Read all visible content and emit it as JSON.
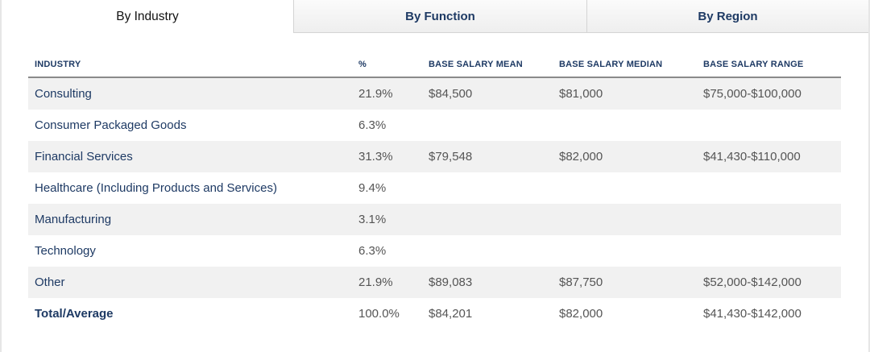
{
  "tabs": [
    {
      "label": "By Industry",
      "active": true
    },
    {
      "label": "By Function",
      "active": false
    },
    {
      "label": "By Region",
      "active": false
    }
  ],
  "table": {
    "headers": [
      "INDUSTRY",
      "%",
      "BASE SALARY MEAN",
      "BASE SALARY MEDIAN",
      "BASE SALARY RANGE"
    ],
    "rows": [
      [
        "Consulting",
        "21.9%",
        "$84,500",
        "$81,000",
        "$75,000-$100,000"
      ],
      [
        "Consumer Packaged Goods",
        "6.3%",
        "",
        "",
        ""
      ],
      [
        "Financial Services",
        "31.3%",
        "$79,548",
        "$82,000",
        "$41,430-$110,000"
      ],
      [
        "Healthcare (Including Products and Services)",
        "9.4%",
        "",
        "",
        ""
      ],
      [
        "Manufacturing",
        "3.1%",
        "",
        "",
        ""
      ],
      [
        "Technology",
        "6.3%",
        "",
        "",
        ""
      ],
      [
        "Other",
        "21.9%",
        "$89,083",
        "$87,750",
        "$52,000-$142,000"
      ],
      [
        "Total/Average",
        "100.0%",
        "$84,201",
        "$82,000",
        "$41,430-$142,000"
      ]
    ]
  },
  "colors": {
    "navy": "#1e3a64",
    "row_shade": "#f1f1f1",
    "text_gray": "#555555"
  }
}
